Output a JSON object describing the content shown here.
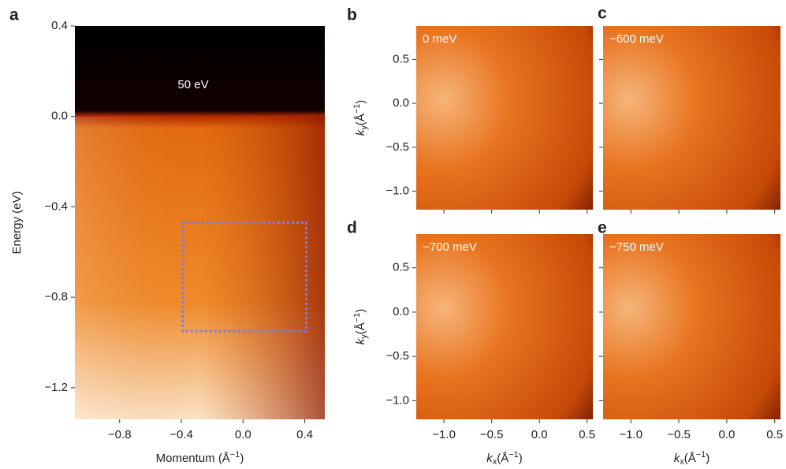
{
  "chart_data": [
    {
      "type": "heatmap",
      "panel": "a",
      "annotation": "50 eV",
      "xlabel": {
        "text": "Momentum (Å",
        "sup": "−1",
        "end": ")"
      },
      "ylabel": {
        "text": "Energy (eV)"
      },
      "xlim": [
        -1.09,
        0.53
      ],
      "ylim": [
        -1.34,
        0.4
      ],
      "xticks": [
        {
          "value": -0.8,
          "label": "−0.8"
        },
        {
          "value": -0.4,
          "label": "−0.4"
        },
        {
          "value": 0,
          "label": "0.0"
        },
        0.4
      ],
      "yticks": [
        0.4,
        {
          "value": 0,
          "label": "0.0"
        },
        {
          "value": -0.4,
          "label": "−0.4"
        },
        {
          "value": -0.8,
          "label": "−0.8"
        },
        {
          "value": -1.2,
          "label": "−1.2"
        }
      ],
      "xtick_labels": true,
      "ytick_labels": true,
      "highlight": {
        "x": [
          -0.39,
          0.41
        ],
        "y": [
          -0.95,
          -0.47
        ],
        "color": "#7b7bea"
      }
    },
    {
      "type": "heatmap",
      "panel": "b",
      "annotation": "0 meV",
      "ylabel": {
        "symbol": "k",
        "sub": "y",
        "text": "(Å",
        "sup": "−1",
        "end": ")"
      },
      "xlim": [
        -1.29,
        0.56
      ],
      "ylim": [
        -1.21,
        0.88
      ],
      "xticks": [
        -1,
        -0.5,
        0,
        0.5
      ],
      "yticks": [
        0.5,
        {
          "value": 0,
          "label": "0.0"
        },
        {
          "value": -0.5,
          "label": "−0.5"
        },
        {
          "value": -1,
          "label": "−1.0"
        }
      ],
      "xtick_labels": false,
      "ytick_labels": true
    },
    {
      "type": "heatmap",
      "panel": "c",
      "annotation": "−600 meV",
      "xlim": [
        -1.29,
        0.56
      ],
      "ylim": [
        -1.21,
        0.88
      ],
      "xticks": [
        -1,
        -0.5,
        0,
        0.5
      ],
      "yticks": [
        0.5,
        0,
        -0.5,
        -1
      ],
      "xtick_labels": false,
      "ytick_labels": false
    },
    {
      "type": "heatmap",
      "panel": "d",
      "annotation": "−700 meV",
      "xlabel": {
        "symbol": "k",
        "sub": "x",
        "text": "(Å",
        "sup": "−1",
        "end": ")"
      },
      "ylabel": {
        "symbol": "k",
        "sub": "y",
        "text": "(Å",
        "sup": "−1",
        "end": ")"
      },
      "xlim": [
        -1.29,
        0.56
      ],
      "ylim": [
        -1.21,
        0.88
      ],
      "xticks": [
        {
          "value": -1,
          "label": "−1.0"
        },
        {
          "value": -0.5,
          "label": "−0.5"
        },
        {
          "value": 0,
          "label": "0.0"
        },
        0.5
      ],
      "yticks": [
        0.5,
        {
          "value": 0,
          "label": "0.0"
        },
        {
          "value": -0.5,
          "label": "−0.5"
        },
        {
          "value": -1,
          "label": "−1.0"
        }
      ],
      "xtick_labels": true,
      "ytick_labels": true
    },
    {
      "type": "heatmap",
      "panel": "e",
      "annotation": "−750 meV",
      "xlabel": {
        "symbol": "k",
        "sub": "x",
        "text": "(Å",
        "sup": "−1",
        "end": ")"
      },
      "xlim": [
        -1.29,
        0.56
      ],
      "ylim": [
        -1.21,
        0.88
      ],
      "xticks": [
        {
          "value": -1,
          "label": "−1.0"
        },
        {
          "value": -0.5,
          "label": "−0.5"
        },
        {
          "value": 0,
          "label": "0.0"
        },
        0.5
      ],
      "yticks": [
        0.5,
        0,
        -0.5,
        -1
      ],
      "xtick_labels": true,
      "ytick_labels": false
    }
  ]
}
